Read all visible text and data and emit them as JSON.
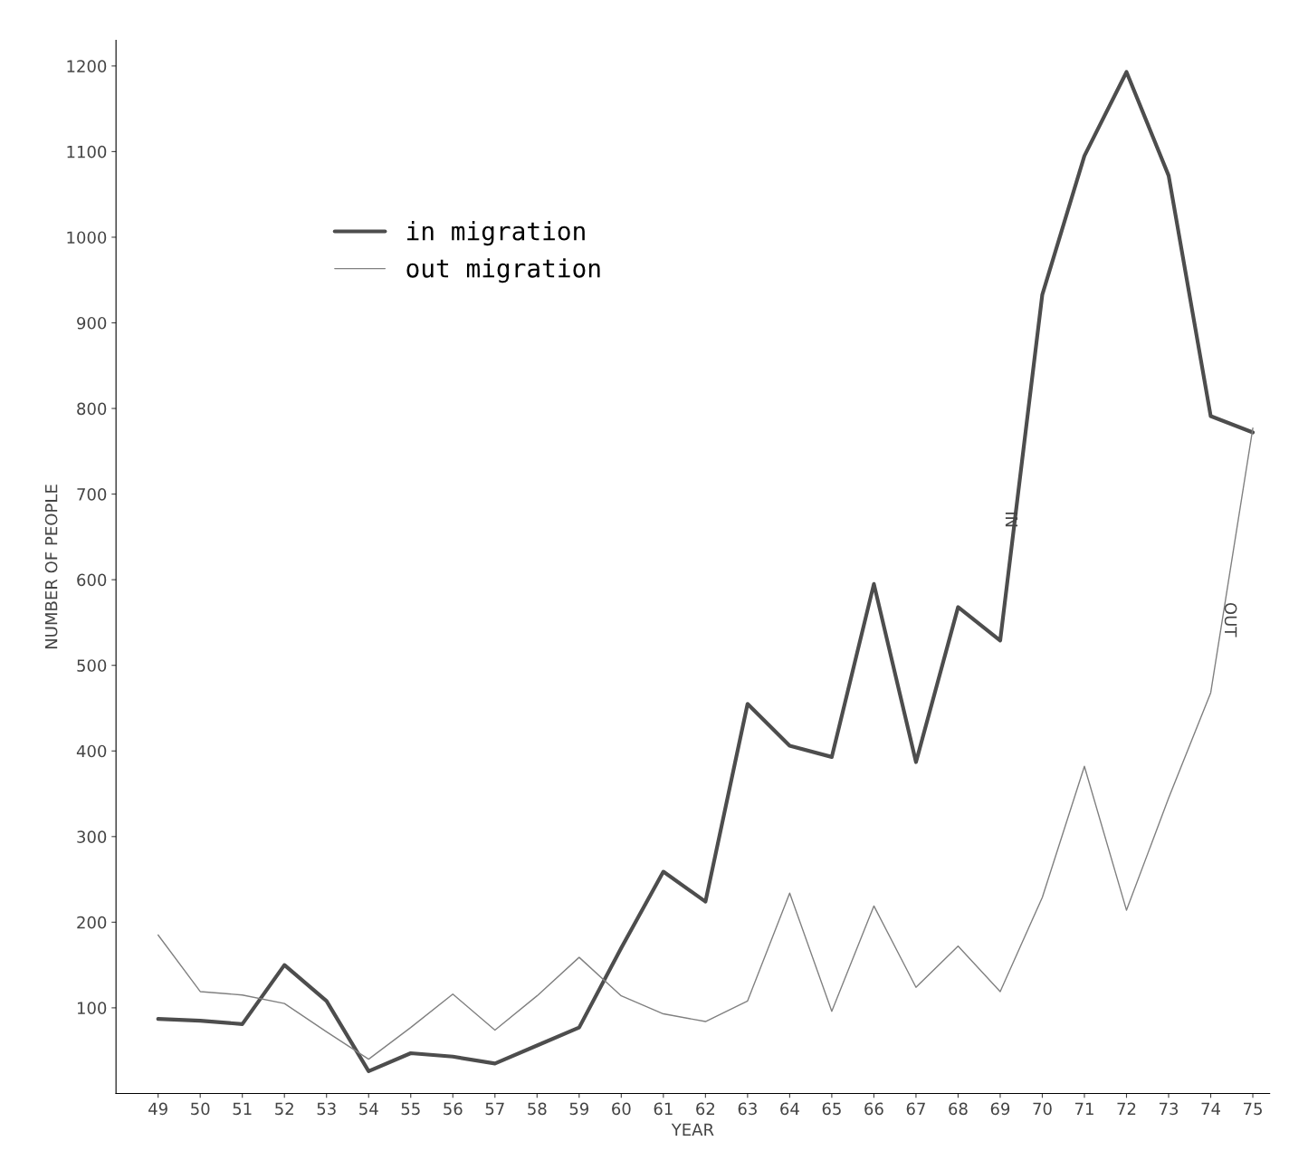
{
  "chart_data": {
    "type": "line",
    "xlabel": "YEAR",
    "ylabel": "NUMBER OF PEOPLE",
    "categories": [
      "49",
      "50",
      "51",
      "52",
      "53",
      "54",
      "55",
      "56",
      "57",
      "58",
      "59",
      "60",
      "61",
      "62",
      "63",
      "64",
      "65",
      "66",
      "67",
      "68",
      "69",
      "70",
      "71",
      "72",
      "73",
      "74",
      "75"
    ],
    "series": [
      {
        "name": "in migration",
        "color": "#4d4d4d",
        "values": [
          87,
          85,
          81,
          150,
          108,
          26,
          47,
          43,
          35,
          56,
          77,
          170,
          259,
          224,
          455,
          406,
          393,
          595,
          387,
          568,
          529,
          933,
          1095,
          1193,
          1072,
          791,
          772
        ]
      },
      {
        "name": "out migration",
        "color": "#808080",
        "values": [
          185,
          119,
          115,
          105,
          72,
          40,
          77,
          116,
          74,
          114,
          159,
          114,
          93,
          84,
          108,
          234,
          96,
          219,
          124,
          172,
          119,
          229,
          382,
          214,
          345,
          468,
          777
        ]
      }
    ],
    "annotations": [
      "IN",
      "OUT"
    ],
    "ylim": [
      0,
      1230
    ],
    "yticks": [
      100,
      200,
      300,
      400,
      500,
      600,
      700,
      800,
      900,
      1000,
      1100,
      1200
    ],
    "grid": false,
    "legend": "top left",
    "marker": "none",
    "line_style": "solid"
  }
}
